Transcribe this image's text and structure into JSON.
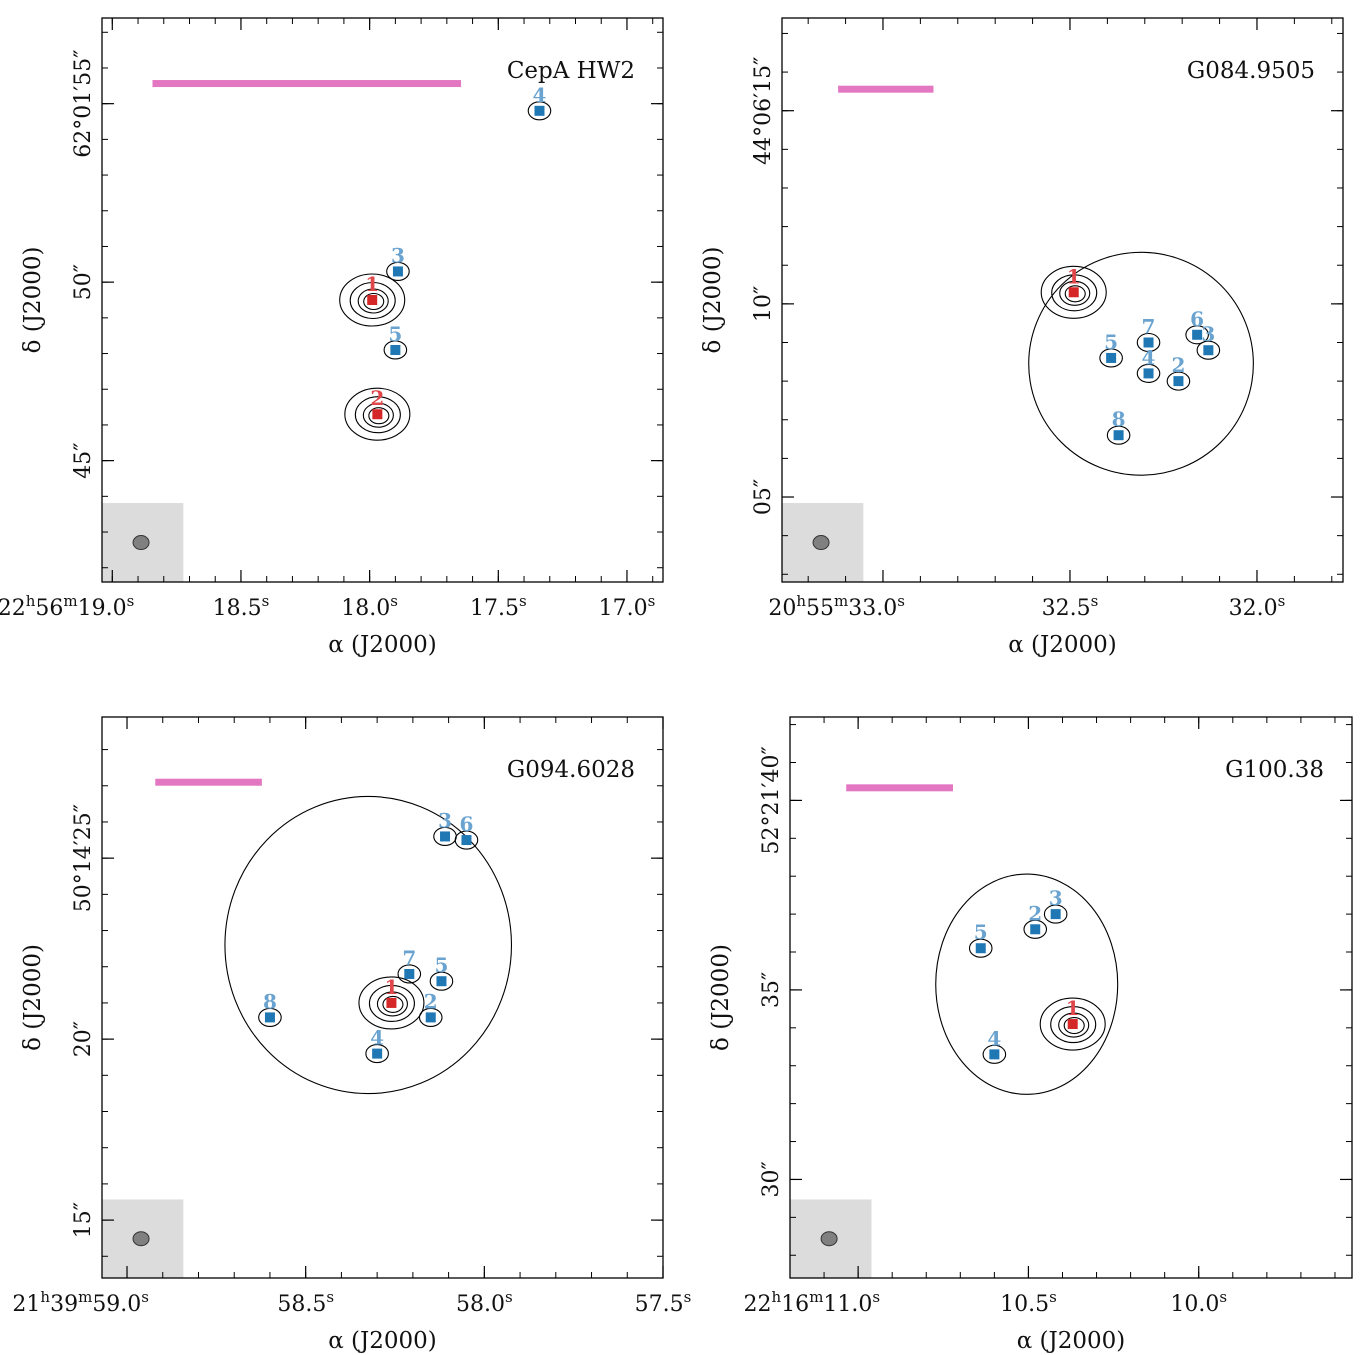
{
  "figure": {
    "colors": {
      "red": "#d62728",
      "blue": "#1f77b4",
      "label_blue": "#6aa3cf",
      "label_red": "#e0474a",
      "scalebar": "#e377c2",
      "beam_box": "#dcdcdc",
      "beam": "#808080"
    }
  },
  "chart_data": [
    {
      "type": "scatter",
      "title": "CepA HW2",
      "xlabel": "α (J2000)",
      "ylabel": "δ (J2000)",
      "x_ticks": [
        {
          "value": 19.0,
          "label": "22h56m19.0s"
        },
        {
          "value": 18.5,
          "label": "18.5s"
        },
        {
          "value": 18.0,
          "label": "18.0s"
        },
        {
          "value": 17.5,
          "label": "17.5s"
        },
        {
          "value": 17.0,
          "label": "17.0s"
        }
      ],
      "y_ticks": [
        {
          "value": 55,
          "label": "62°01′55″"
        },
        {
          "value": 50,
          "label": "50″"
        },
        {
          "value": 45,
          "label": "45″"
        }
      ],
      "xlim": [
        19.04,
        16.86
      ],
      "ylim": [
        41.6,
        57.4
      ],
      "sources": [
        {
          "id": "1",
          "x": 17.99,
          "y": 49.5,
          "class": "red"
        },
        {
          "id": "2",
          "x": 17.97,
          "y": 46.3,
          "class": "red"
        },
        {
          "id": "3",
          "x": 17.89,
          "y": 50.3,
          "class": "blue"
        },
        {
          "id": "4",
          "x": 17.34,
          "y": 54.8,
          "class": "blue"
        },
        {
          "id": "5",
          "x": 17.9,
          "y": 48.1,
          "class": "blue"
        }
      ]
    },
    {
      "type": "scatter",
      "title": "G084.9505",
      "xlabel": "α (J2000)",
      "ylabel": "δ (J2000)",
      "x_ticks": [
        {
          "value": 33.0,
          "label": "20h55m33.0s"
        },
        {
          "value": 32.5,
          "label": "32.5s"
        },
        {
          "value": 32.0,
          "label": "32.0s"
        }
      ],
      "y_ticks": [
        {
          "value": 15,
          "label": "44°06′15″"
        },
        {
          "value": 10,
          "label": "10″"
        },
        {
          "value": 5,
          "label": "05″"
        }
      ],
      "xlim": [
        33.27,
        31.77
      ],
      "ylim": [
        2.8,
        17.4
      ],
      "sources": [
        {
          "id": "1",
          "x": 32.49,
          "y": 10.3,
          "class": "red"
        },
        {
          "id": "2",
          "x": 32.21,
          "y": 8.0,
          "class": "blue"
        },
        {
          "id": "3",
          "x": 32.13,
          "y": 8.8,
          "class": "blue"
        },
        {
          "id": "4",
          "x": 32.29,
          "y": 8.2,
          "class": "blue"
        },
        {
          "id": "5",
          "x": 32.39,
          "y": 8.6,
          "class": "blue"
        },
        {
          "id": "6",
          "x": 32.16,
          "y": 9.2,
          "class": "blue"
        },
        {
          "id": "7",
          "x": 32.29,
          "y": 9.0,
          "class": "blue"
        },
        {
          "id": "8",
          "x": 32.37,
          "y": 6.6,
          "class": "blue"
        }
      ]
    },
    {
      "type": "scatter",
      "title": "G094.6028",
      "xlabel": "α (J2000)",
      "ylabel": "δ (J2000)",
      "x_ticks": [
        {
          "value": 59.0,
          "label": "21h39m59.0s"
        },
        {
          "value": 58.5,
          "label": "58.5s"
        },
        {
          "value": 58.0,
          "label": "58.0s"
        },
        {
          "value": 57.5,
          "label": "57.5s"
        }
      ],
      "y_ticks": [
        {
          "value": 25,
          "label": "50°14′25″"
        },
        {
          "value": 20,
          "label": "20″"
        },
        {
          "value": 15,
          "label": "15″"
        }
      ],
      "xlim": [
        59.07,
        57.5
      ],
      "ylim": [
        13.4,
        28.9
      ],
      "sources": [
        {
          "id": "1",
          "x": 58.26,
          "y": 21.0,
          "class": "red"
        },
        {
          "id": "2",
          "x": 58.15,
          "y": 20.6,
          "class": "blue"
        },
        {
          "id": "3",
          "x": 58.11,
          "y": 25.6,
          "class": "blue"
        },
        {
          "id": "4",
          "x": 58.3,
          "y": 19.6,
          "class": "blue"
        },
        {
          "id": "5",
          "x": 58.12,
          "y": 21.6,
          "class": "blue"
        },
        {
          "id": "6",
          "x": 58.05,
          "y": 25.5,
          "class": "blue"
        },
        {
          "id": "7",
          "x": 58.21,
          "y": 21.8,
          "class": "blue"
        },
        {
          "id": "8",
          "x": 58.6,
          "y": 20.6,
          "class": "blue"
        }
      ]
    },
    {
      "type": "scatter",
      "title": "G100.38",
      "xlabel": "α (J2000)",
      "ylabel": "δ (J2000)",
      "x_ticks": [
        {
          "value": 11.0,
          "label": "22h16m11.0s"
        },
        {
          "value": 10.5,
          "label": "10.5s"
        },
        {
          "value": 10.0,
          "label": "10.0s"
        }
      ],
      "y_ticks": [
        {
          "value": 40,
          "label": "52°21′40″"
        },
        {
          "value": 35,
          "label": "35″"
        },
        {
          "value": 30,
          "label": "30″"
        }
      ],
      "xlim": [
        11.2,
        9.55
      ],
      "ylim": [
        27.4,
        42.2
      ],
      "sources": [
        {
          "id": "1",
          "x": 10.37,
          "y": 34.1,
          "class": "red"
        },
        {
          "id": "2",
          "x": 10.48,
          "y": 36.6,
          "class": "blue"
        },
        {
          "id": "3",
          "x": 10.42,
          "y": 37.0,
          "class": "blue"
        },
        {
          "id": "4",
          "x": 10.6,
          "y": 33.3,
          "class": "blue"
        },
        {
          "id": "5",
          "x": 10.64,
          "y": 36.1,
          "class": "blue"
        }
      ]
    }
  ]
}
